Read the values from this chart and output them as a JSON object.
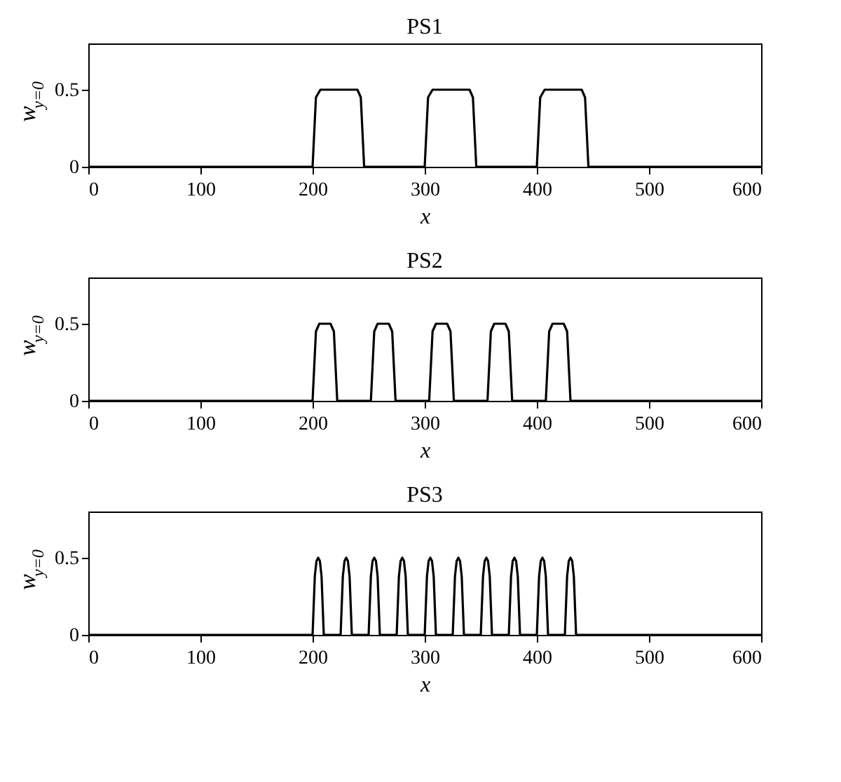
{
  "chart_data": [
    {
      "type": "line",
      "title": "PS1",
      "xlabel": "x",
      "ylabel": "w$_{y=0}$",
      "xlim": [
        0,
        600
      ],
      "xticks": [
        0,
        100,
        200,
        300,
        400,
        500,
        600
      ],
      "ylim": [
        0,
        0.8
      ],
      "yticks": [
        0,
        0.5
      ],
      "grid": false,
      "series": [
        {
          "color": "#000000",
          "x": [
            0,
            200,
            203,
            207,
            240,
            243,
            246,
            300,
            303,
            307,
            340,
            343,
            346,
            400,
            403,
            407,
            440,
            443,
            446,
            600
          ],
          "values": [
            0,
            0,
            0.45,
            0.5,
            0.5,
            0.45,
            0,
            0,
            0.45,
            0.5,
            0.5,
            0.45,
            0,
            0,
            0.45,
            0.5,
            0.5,
            0.45,
            0,
            0
          ]
        }
      ]
    },
    {
      "type": "line",
      "title": "PS2",
      "xlabel": "x",
      "ylabel": "w$_{y=0}$",
      "xlim": [
        0,
        600
      ],
      "xticks": [
        0,
        100,
        200,
        300,
        400,
        500,
        600
      ],
      "ylim": [
        0,
        0.8
      ],
      "yticks": [
        0,
        0.5
      ],
      "grid": false,
      "series": [
        {
          "color": "#000000",
          "x": [
            0,
            200,
            203,
            206,
            216,
            219,
            222,
            252,
            255,
            258,
            268,
            271,
            274,
            304,
            307,
            310,
            320,
            323,
            326,
            356,
            359,
            362,
            372,
            375,
            378,
            408,
            411,
            414,
            424,
            427,
            430,
            600
          ],
          "values": [
            0,
            0,
            0.45,
            0.5,
            0.5,
            0.45,
            0,
            0,
            0.45,
            0.5,
            0.5,
            0.45,
            0,
            0,
            0.45,
            0.5,
            0.5,
            0.45,
            0,
            0,
            0.45,
            0.5,
            0.5,
            0.45,
            0,
            0,
            0.45,
            0.5,
            0.5,
            0.45,
            0,
            0
          ]
        }
      ]
    },
    {
      "type": "line",
      "title": "PS3",
      "xlabel": "x",
      "ylabel": "w$_{y=0}$",
      "xlim": [
        0,
        600
      ],
      "xticks": [
        0,
        100,
        200,
        300,
        400,
        500,
        600
      ],
      "ylim": [
        0,
        0.8
      ],
      "yticks": [
        0,
        0.5
      ],
      "grid": false,
      "series": [
        {
          "color": "#000000",
          "x": [
            0,
            200,
            202,
            203.5,
            205,
            206.5,
            208,
            210,
            225,
            227,
            228.5,
            230,
            231.5,
            233,
            235,
            250,
            252,
            253.5,
            255,
            256.5,
            258,
            260,
            275,
            277,
            278.5,
            280,
            281.5,
            283,
            285,
            300,
            302,
            303.5,
            305,
            306.5,
            308,
            310,
            325,
            327,
            328.5,
            330,
            331.5,
            333,
            335,
            350,
            352,
            353.5,
            355,
            356.5,
            358,
            360,
            375,
            377,
            378.5,
            380,
            381.5,
            383,
            385,
            400,
            402,
            403.5,
            405,
            406.5,
            408,
            410,
            425,
            427,
            428.5,
            430,
            431.5,
            433,
            435,
            600
          ],
          "values": [
            0,
            0,
            0.38,
            0.48,
            0.5,
            0.48,
            0.38,
            0,
            0,
            0.38,
            0.48,
            0.5,
            0.48,
            0.38,
            0,
            0,
            0.38,
            0.48,
            0.5,
            0.48,
            0.38,
            0,
            0,
            0.38,
            0.48,
            0.5,
            0.48,
            0.38,
            0,
            0,
            0.38,
            0.48,
            0.5,
            0.48,
            0.38,
            0,
            0,
            0.38,
            0.48,
            0.5,
            0.48,
            0.38,
            0,
            0,
            0.38,
            0.48,
            0.5,
            0.48,
            0.38,
            0,
            0,
            0.38,
            0.48,
            0.5,
            0.48,
            0.38,
            0,
            0,
            0.38,
            0.48,
            0.5,
            0.48,
            0.38,
            0,
            0,
            0.38,
            0.48,
            0.5,
            0.48,
            0.38,
            0,
            0
          ]
        }
      ]
    }
  ]
}
